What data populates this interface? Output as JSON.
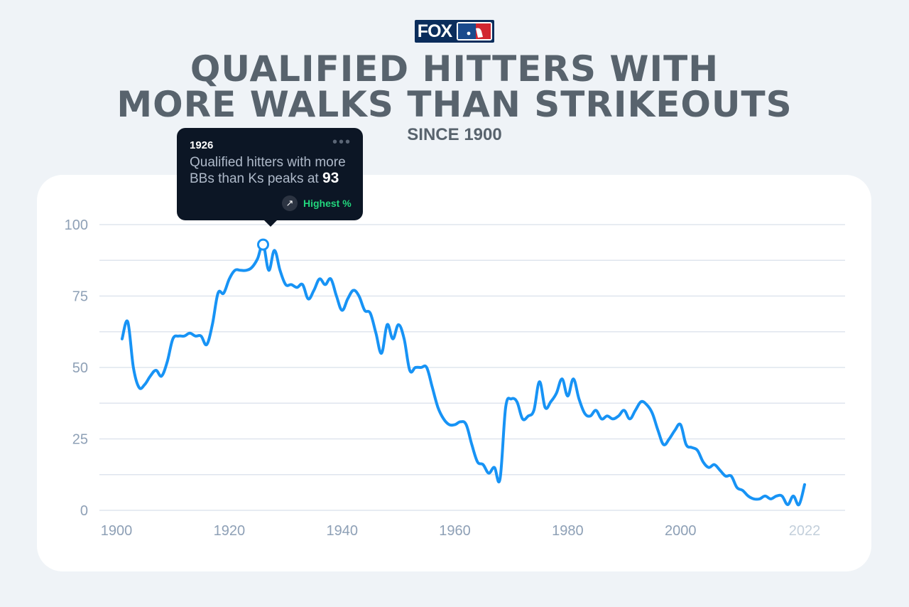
{
  "logo": {
    "fox": "FOX",
    "league": "MLB"
  },
  "title_line1": "QUALIFIED HITTERS WITH",
  "title_line2": "MORE WALKS THAN STRIKEOUTS",
  "subtitle": "SINCE 1900",
  "tooltip": {
    "year": "1926",
    "text": "Qualified hitters with more BBs than Ks peaks at",
    "value": "93",
    "badge": "Highest %",
    "badge_icon": "arrow-up-right-icon",
    "menu_icon": "more-dots-icon"
  },
  "colors": {
    "line": "#1793f5",
    "grid": "#dfe5ee",
    "tick": "#8ea0b6",
    "tick_last": "#c3cfdb"
  },
  "chart_data": {
    "type": "line",
    "title": "QUALIFIED HITTERS WITH MORE WALKS THAN STRIKEOUTS",
    "subtitle": "SINCE 1900",
    "xlabel": "",
    "ylabel": "",
    "xlim": [
      1900,
      2022
    ],
    "ylim": [
      0,
      100
    ],
    "grid": true,
    "legend": "none",
    "xticks": [
      1900,
      1920,
      1940,
      1960,
      1980,
      2000,
      2022
    ],
    "yticks": [
      0,
      25,
      50,
      75,
      100
    ],
    "highlight": {
      "x": 1926,
      "y": 93,
      "label": "Highest %"
    },
    "series": [
      {
        "name": "Qualified hitters with more BBs than Ks",
        "x": [
          1901,
          1902,
          1903,
          1904,
          1905,
          1906,
          1907,
          1908,
          1909,
          1910,
          1911,
          1912,
          1913,
          1914,
          1915,
          1916,
          1917,
          1918,
          1919,
          1920,
          1921,
          1922,
          1923,
          1924,
          1925,
          1926,
          1927,
          1928,
          1929,
          1930,
          1931,
          1932,
          1933,
          1934,
          1935,
          1936,
          1937,
          1938,
          1939,
          1940,
          1941,
          1942,
          1943,
          1944,
          1945,
          1946,
          1947,
          1948,
          1949,
          1950,
          1951,
          1952,
          1953,
          1954,
          1955,
          1956,
          1957,
          1958,
          1959,
          1960,
          1961,
          1962,
          1963,
          1964,
          1965,
          1966,
          1967,
          1968,
          1969,
          1970,
          1971,
          1972,
          1973,
          1974,
          1975,
          1976,
          1977,
          1978,
          1979,
          1980,
          1981,
          1982,
          1983,
          1984,
          1985,
          1986,
          1987,
          1988,
          1989,
          1990,
          1991,
          1992,
          1993,
          1994,
          1995,
          1996,
          1997,
          1998,
          1999,
          2000,
          2001,
          2002,
          2003,
          2004,
          2005,
          2006,
          2007,
          2008,
          2009,
          2010,
          2011,
          2012,
          2013,
          2014,
          2015,
          2016,
          2017,
          2018,
          2019,
          2020,
          2021,
          2022
        ],
        "values": [
          60,
          66,
          50,
          43,
          44,
          47,
          49,
          47,
          52,
          60,
          61,
          61,
          62,
          61,
          61,
          58,
          65,
          76,
          76,
          81,
          84,
          84,
          84,
          85,
          88,
          93,
          84,
          91,
          84,
          79,
          79,
          78,
          79,
          74,
          77,
          81,
          79,
          81,
          75,
          70,
          74,
          77,
          75,
          70,
          69,
          62,
          55,
          65,
          60,
          65,
          60,
          49,
          50,
          50,
          50,
          43,
          36,
          32,
          30,
          30,
          31,
          30,
          23,
          17,
          16,
          13,
          15,
          11,
          36,
          39,
          38,
          32,
          33,
          35,
          45,
          36,
          38,
          41,
          46,
          40,
          46,
          39,
          34,
          33,
          35,
          32,
          33,
          32,
          33,
          35,
          32,
          35,
          38,
          37,
          34,
          28,
          23,
          25,
          28,
          30,
          23,
          22,
          21,
          17,
          15,
          16,
          14,
          12,
          12,
          8,
          7,
          5,
          4,
          4,
          5,
          4,
          5,
          5,
          2,
          5,
          2,
          9
        ]
      }
    ]
  }
}
